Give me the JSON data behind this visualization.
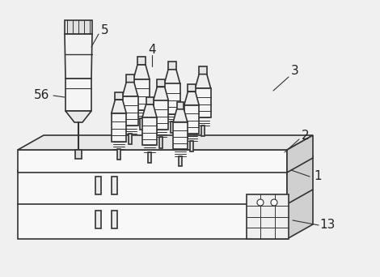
{
  "bg_color": "#f0f0f0",
  "line_color": "#333333",
  "fill_light": "#f8f8f8",
  "fill_mid": "#e8e8e8",
  "fill_dark": "#d0d0d0",
  "label_5": "5",
  "label_56": "56",
  "label_4": "4",
  "label_3": "3",
  "label_2": "2",
  "label_1": "1",
  "label_13": "13",
  "lw": 1.2,
  "label_fontsize": 11
}
